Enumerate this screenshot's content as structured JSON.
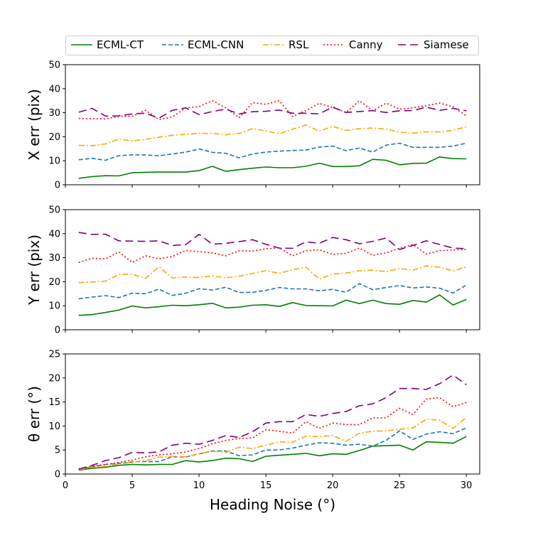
{
  "legend": {
    "placement": "top-center",
    "entries": [
      {
        "label": "ECML-CT",
        "color": "#008000",
        "dash": "solid"
      },
      {
        "label": "ECML-CNN",
        "color": "#1f77b4",
        "dash": "dashed"
      },
      {
        "label": "RSL",
        "color": "#ffa500",
        "dash": "dashdot"
      },
      {
        "label": "Canny",
        "color": "#ff0000",
        "dash": "dotted"
      },
      {
        "label": "Siamese",
        "color": "#800080",
        "dash": "longdash"
      }
    ]
  },
  "chart_data": [
    {
      "type": "line",
      "ylabel": "X err (pix)",
      "xlabel": "",
      "xlim": [
        0,
        31
      ],
      "ylim": [
        0,
        50
      ],
      "yticks": [
        0,
        10,
        20,
        30,
        40,
        50
      ],
      "xticks": [
        0,
        5,
        10,
        15,
        20,
        25,
        30
      ],
      "show_xticklabels": false,
      "x": [
        1,
        2,
        3,
        4,
        5,
        6,
        7,
        8,
        9,
        10,
        11,
        12,
        13,
        14,
        15,
        16,
        17,
        18,
        19,
        20,
        21,
        22,
        23,
        24,
        25,
        26,
        27,
        28,
        29,
        30
      ],
      "series": [
        {
          "name": "ECML-CT",
          "values": [
            2.7,
            3.4,
            3.8,
            3.7,
            5.0,
            5.2,
            5.3,
            5.3,
            5.3,
            5.9,
            7.7,
            5.6,
            6.3,
            6.9,
            7.4,
            7.1,
            7.1,
            7.7,
            9.0,
            7.6,
            7.6,
            7.9,
            10.6,
            10.2,
            8.3,
            8.9,
            9.0,
            11.6,
            10.9,
            10.8
          ]
        },
        {
          "name": "ECML-CNN",
          "values": [
            10.4,
            11.0,
            10.2,
            12.1,
            12.5,
            12.4,
            12.1,
            12.8,
            13.6,
            14.9,
            13.5,
            13.1,
            11.2,
            12.8,
            13.6,
            14.0,
            14.3,
            14.4,
            15.7,
            16.1,
            14.2,
            15.3,
            13.6,
            16.5,
            17.3,
            15.6,
            15.6,
            15.6,
            16.1,
            17.3
          ]
        },
        {
          "name": "RSL",
          "values": [
            16.4,
            16.3,
            17.0,
            19.0,
            18.3,
            18.9,
            19.8,
            20.6,
            21.0,
            21.4,
            21.4,
            20.8,
            21.4,
            23.4,
            22.4,
            21.2,
            23.1,
            24.9,
            22.3,
            24.3,
            22.6,
            23.4,
            23.6,
            23.2,
            21.9,
            21.5,
            22.0,
            22.0,
            22.6,
            24.2
          ]
        },
        {
          "name": "Canny",
          "values": [
            27.6,
            27.5,
            27.4,
            28.5,
            28.5,
            31.0,
            27.2,
            28.2,
            32.0,
            32.5,
            35.0,
            32.0,
            27.9,
            34.2,
            33.5,
            35.0,
            28.4,
            30.9,
            33.9,
            32.2,
            30.1,
            35.0,
            30.8,
            34.0,
            31.5,
            32.0,
            33.0,
            34.0,
            32.5,
            28.7
          ]
        },
        {
          "name": "Siamese",
          "values": [
            30.2,
            31.8,
            28.6,
            28.7,
            29.5,
            29.8,
            27.7,
            31.0,
            32.0,
            29.2,
            30.5,
            31.5,
            29.5,
            30.4,
            30.6,
            31.1,
            29.8,
            29.8,
            29.5,
            32.4,
            30.1,
            30.5,
            30.9,
            30.1,
            30.8,
            30.9,
            32.3,
            31.0,
            31.8,
            30.8
          ]
        }
      ]
    },
    {
      "type": "line",
      "ylabel": "Y err (pix)",
      "xlabel": "",
      "xlim": [
        0,
        31
      ],
      "ylim": [
        0,
        50
      ],
      "yticks": [
        0,
        10,
        20,
        30,
        40,
        50
      ],
      "xticks": [
        0,
        5,
        10,
        15,
        20,
        25,
        30
      ],
      "show_xticklabels": false,
      "x": [
        1,
        2,
        3,
        4,
        5,
        6,
        7,
        8,
        9,
        10,
        11,
        12,
        13,
        14,
        15,
        16,
        17,
        18,
        19,
        20,
        21,
        22,
        23,
        24,
        25,
        26,
        27,
        28,
        29,
        30
      ],
      "series": [
        {
          "name": "ECML-CT",
          "values": [
            6.0,
            6.3,
            7.2,
            8.2,
            9.9,
            9.1,
            9.6,
            10.2,
            10.0,
            10.4,
            11.0,
            9.1,
            9.4,
            10.2,
            10.4,
            9.7,
            11.3,
            10.1,
            10.0,
            9.9,
            12.3,
            10.9,
            12.3,
            10.9,
            10.6,
            12.2,
            11.5,
            14.5,
            10.3,
            12.6
          ]
        },
        {
          "name": "ECML-CNN",
          "values": [
            12.9,
            13.6,
            14.2,
            13.4,
            15.2,
            15.0,
            16.9,
            14.3,
            15.2,
            17.1,
            16.5,
            17.7,
            15.5,
            15.6,
            16.4,
            17.6,
            17.0,
            17.0,
            16.2,
            16.8,
            15.6,
            19.2,
            16.7,
            17.6,
            18.4,
            17.4,
            17.8,
            17.3,
            15.3,
            18.6
          ]
        },
        {
          "name": "RSL",
          "values": [
            19.6,
            19.9,
            20.2,
            23.0,
            23.2,
            21.4,
            26.2,
            21.6,
            21.9,
            21.8,
            22.4,
            21.6,
            22.3,
            23.4,
            24.6,
            23.5,
            25.0,
            26.0,
            21.1,
            23.2,
            23.6,
            24.6,
            24.8,
            24.2,
            25.5,
            24.8,
            26.6,
            26.0,
            24.5,
            26.2
          ]
        },
        {
          "name": "Canny",
          "values": [
            28.0,
            29.8,
            29.5,
            32.4,
            28.0,
            30.8,
            29.5,
            30.5,
            33.0,
            32.5,
            32.0,
            30.8,
            32.9,
            32.7,
            33.7,
            34.1,
            30.8,
            32.9,
            33.3,
            31.4,
            31.8,
            34.0,
            31.0,
            32.0,
            33.9,
            35.5,
            31.5,
            33.0,
            33.2,
            33.5
          ]
        },
        {
          "name": "Siamese",
          "values": [
            40.5,
            39.7,
            39.8,
            37.0,
            36.9,
            36.8,
            37.0,
            35.1,
            35.4,
            39.7,
            35.6,
            36.0,
            36.7,
            37.5,
            35.6,
            34.0,
            33.9,
            36.6,
            36.0,
            38.4,
            37.5,
            35.8,
            36.8,
            38.2,
            33.4,
            35.1,
            37.0,
            35.5,
            34.0,
            33.8
          ]
        }
      ]
    },
    {
      "type": "line",
      "ylabel": "θ err (°)",
      "xlabel": "Heading Noise (°)",
      "xlim": [
        0,
        31
      ],
      "ylim": [
        0,
        25
      ],
      "yticks": [
        0,
        5,
        10,
        15,
        20,
        25
      ],
      "xticks": [
        0,
        5,
        10,
        15,
        20,
        25,
        30
      ],
      "show_xticklabels": true,
      "x": [
        1,
        2,
        3,
        4,
        5,
        6,
        7,
        8,
        9,
        10,
        11,
        12,
        13,
        14,
        15,
        16,
        17,
        18,
        19,
        20,
        21,
        22,
        23,
        24,
        25,
        26,
        27,
        28,
        29,
        30
      ],
      "series": [
        {
          "name": "ECML-CT",
          "values": [
            0.8,
            1.2,
            1.4,
            1.8,
            2.0,
            1.9,
            2.0,
            2.0,
            2.8,
            2.5,
            2.8,
            3.3,
            3.2,
            2.6,
            3.7,
            3.9,
            4.1,
            4.3,
            3.8,
            4.2,
            4.1,
            4.9,
            5.8,
            5.9,
            6.0,
            5.0,
            6.7,
            6.6,
            6.4,
            7.8
          ]
        },
        {
          "name": "ECML-CNN",
          "values": [
            1.0,
            1.5,
            2.0,
            2.2,
            2.5,
            2.6,
            2.6,
            3.6,
            3.5,
            4.2,
            4.8,
            4.8,
            3.8,
            4.0,
            5.0,
            5.0,
            5.4,
            6.0,
            6.5,
            6.4,
            6.0,
            6.2,
            5.8,
            7.0,
            9.0,
            7.2,
            8.3,
            8.8,
            8.4,
            9.6
          ]
        },
        {
          "name": "RSL",
          "values": [
            0.9,
            1.4,
            1.6,
            2.1,
            2.4,
            2.8,
            3.5,
            3.6,
            3.6,
            4.2,
            4.8,
            4.5,
            5.6,
            5.3,
            6.0,
            6.7,
            6.6,
            7.9,
            7.8,
            8.0,
            6.8,
            8.5,
            8.9,
            9.0,
            9.3,
            9.6,
            11.4,
            11.2,
            9.5,
            11.8
          ]
        },
        {
          "name": "Canny",
          "values": [
            1.1,
            1.6,
            2.0,
            2.4,
            2.9,
            3.6,
            4.0,
            4.2,
            4.6,
            5.3,
            6.3,
            7.0,
            7.4,
            7.5,
            9.2,
            8.9,
            8.5,
            10.9,
            9.5,
            10.6,
            10.3,
            10.3,
            11.7,
            11.7,
            13.7,
            12.4,
            15.6,
            15.9,
            14.0,
            14.9
          ]
        },
        {
          "name": "Siamese",
          "values": [
            1.0,
            1.8,
            2.8,
            3.4,
            4.5,
            4.4,
            4.6,
            6.0,
            6.4,
            6.2,
            7.0,
            8.0,
            7.6,
            8.8,
            10.6,
            10.9,
            10.9,
            12.4,
            12.0,
            12.6,
            13.0,
            14.2,
            14.6,
            15.9,
            17.8,
            17.8,
            17.6,
            18.8,
            20.6,
            18.6
          ]
        }
      ]
    }
  ]
}
